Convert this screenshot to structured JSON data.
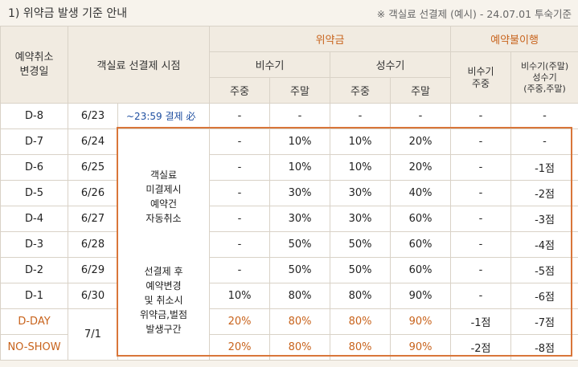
{
  "header": {
    "title": "1) 위약금 발생 기준 안내",
    "note": "※ 객실료 선결제 (예시) - 24.07.01 투숙기준"
  },
  "table": {
    "col_header": {
      "change_day": "예약취소\n변경일",
      "prepay_time": "객실료 선결제 시점",
      "penalty": "위약금",
      "no_use": "예약불이행",
      "off_season": "비수기",
      "peak_season": "성수기",
      "weekday": "주중",
      "weekend": "주말",
      "no_use_off": "비수기\n주중",
      "no_use_off2_line1": "비수기(주말)",
      "no_use_off2_line2": "성수기",
      "no_use_off2_line3": "(주중,주말)"
    },
    "rows": [
      {
        "d": "D-8",
        "date": "6/23",
        "time": "~23:59  결제 必",
        "c1": "-",
        "c2": "-",
        "c3": "-",
        "c4": "-",
        "n1": "-",
        "n2": "-"
      },
      {
        "d": "D-7",
        "date": "6/24",
        "c1": "-",
        "c2": "10%",
        "c3": "10%",
        "c4": "20%",
        "n1": "-",
        "n2": "-"
      },
      {
        "d": "D-6",
        "date": "6/25",
        "c1": "-",
        "c2": "10%",
        "c3": "10%",
        "c4": "20%",
        "n1": "-",
        "n2": "-1점"
      },
      {
        "d": "D-5",
        "date": "6/26",
        "c1": "-",
        "c2": "30%",
        "c3": "30%",
        "c4": "40%",
        "n1": "-",
        "n2": "-2점"
      },
      {
        "d": "D-4",
        "date": "6/27",
        "c1": "-",
        "c2": "30%",
        "c3": "30%",
        "c4": "60%",
        "n1": "-",
        "n2": "-3점"
      },
      {
        "d": "D-3",
        "date": "6/28",
        "c1": "-",
        "c2": "50%",
        "c3": "50%",
        "c4": "60%",
        "n1": "-",
        "n2": "-4점"
      },
      {
        "d": "D-2",
        "date": "6/29",
        "c1": "-",
        "c2": "50%",
        "c3": "50%",
        "c4": "60%",
        "n1": "-",
        "n2": "-5점"
      },
      {
        "d": "D-1",
        "date": "6/30",
        "c1": "10%",
        "c2": "80%",
        "c3": "80%",
        "c4": "90%",
        "n1": "-",
        "n2": "-6점"
      },
      {
        "d": "D-DAY",
        "date": "7/1",
        "c1": "20%",
        "c2": "80%",
        "c3": "80%",
        "c4": "90%",
        "n1": "-1점",
        "n2": "-7점"
      },
      {
        "d": "NO-SHOW",
        "c1": "20%",
        "c2": "80%",
        "c3": "80%",
        "c4": "90%",
        "n1": "-2점",
        "n2": "-8점"
      }
    ],
    "merged_note_top": [
      "객실료",
      "미결제시",
      "예약건",
      "자동취소"
    ],
    "merged_note_bottom": [
      "선결제 후",
      "예약변경",
      "및 취소시",
      "위약금,벌점",
      "발생구간"
    ]
  },
  "colors": {
    "accent": "#c8631c",
    "frame": "#d9763a",
    "blue": "#1f4fa0",
    "header_bg": "#f1ebe1",
    "page_bg": "#f7f3ec"
  }
}
